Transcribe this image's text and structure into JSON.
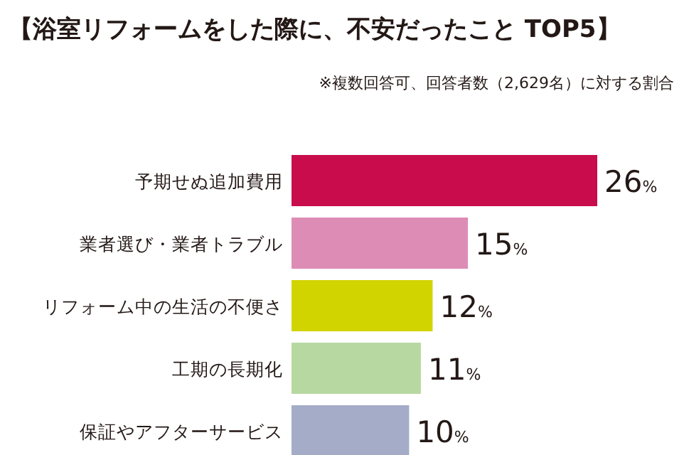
{
  "chart_data": {
    "type": "bar",
    "orientation": "horizontal",
    "title": "【浴室リフォームをした際に、不安だったこと TOP5】",
    "subtitle": "※複数回答可、回答者数（2,629名）に対する割合",
    "categories": [
      "予期せぬ追加費用",
      "業者選び・業者トラブル",
      "リフォーム中の生活の不便さ",
      "工期の長期化",
      "保証やアフターサービス"
    ],
    "values": [
      26,
      15,
      12,
      11,
      10
    ],
    "colors": [
      "#c80c4c",
      "#dd8cb6",
      "#d2d400",
      "#b8d8a2",
      "#a4acc8"
    ],
    "value_labels": [
      "26%",
      "15%",
      "12%",
      "11%",
      "10%"
    ],
    "xlim": [
      0,
      26
    ]
  }
}
